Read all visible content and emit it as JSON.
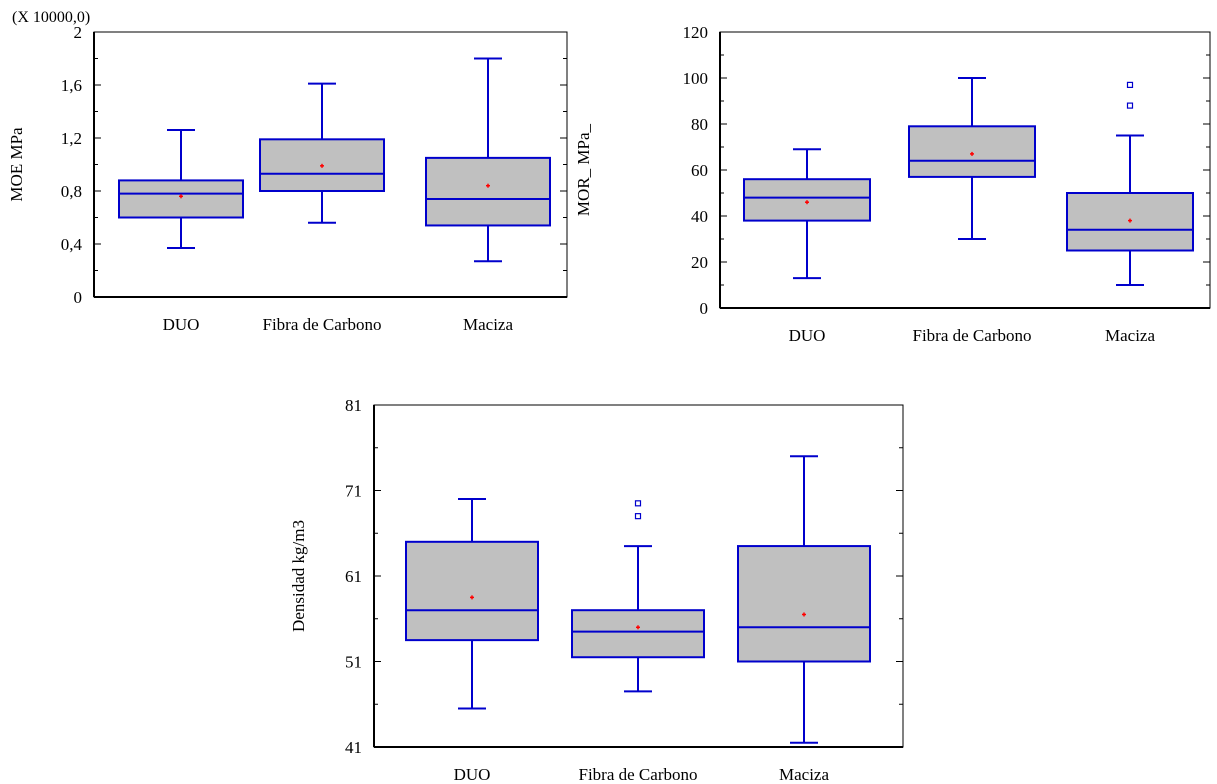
{
  "chart_data": [
    {
      "type": "box",
      "scale_note": "(X 10000,0)",
      "ylabel": "MOE MPa",
      "categories": [
        "DUO",
        "Fibra de Carbono",
        "Maciza"
      ],
      "yticks": [
        "0",
        "0,4",
        "0,8",
        "1,2",
        "1,6",
        "2"
      ],
      "ylim": [
        0,
        2.0
      ],
      "boxes": [
        {
          "whisker_low": 0.37,
          "q1": 0.6,
          "median": 0.78,
          "q3": 0.88,
          "whisker_high": 1.26,
          "mean": 0.76,
          "outliers": []
        },
        {
          "whisker_low": 0.56,
          "q1": 0.8,
          "median": 0.93,
          "q3": 1.19,
          "whisker_high": 1.61,
          "mean": 0.99,
          "outliers": []
        },
        {
          "whisker_low": 0.27,
          "q1": 0.54,
          "median": 0.74,
          "q3": 1.05,
          "whisker_high": 1.8,
          "mean": 0.84,
          "outliers": []
        }
      ]
    },
    {
      "type": "box",
      "scale_note": "",
      "ylabel": "MOR_ MPa_",
      "categories": [
        "DUO",
        "Fibra de Carbono",
        "Maciza"
      ],
      "yticks": [
        "0",
        "20",
        "40",
        "60",
        "80",
        "100",
        "120"
      ],
      "ylim": [
        0,
        120
      ],
      "boxes": [
        {
          "whisker_low": 13,
          "q1": 38,
          "median": 48,
          "q3": 56,
          "whisker_high": 69,
          "mean": 46,
          "outliers": []
        },
        {
          "whisker_low": 30,
          "q1": 57,
          "median": 64,
          "q3": 79,
          "whisker_high": 100,
          "mean": 67,
          "outliers": []
        },
        {
          "whisker_low": 10,
          "q1": 25,
          "median": 34,
          "q3": 50,
          "whisker_high": 75,
          "mean": 38,
          "outliers": [
            88,
            97
          ]
        }
      ]
    },
    {
      "type": "box",
      "scale_note": "",
      "ylabel": "Densidad kg/m3",
      "categories": [
        "DUO",
        "Fibra de Carbono",
        "Maciza"
      ],
      "yticks": [
        "41",
        "51",
        "61",
        "71",
        "81"
      ],
      "ylim": [
        41,
        81
      ],
      "boxes": [
        {
          "whisker_low": 45.5,
          "q1": 53.5,
          "median": 57,
          "q3": 65,
          "whisker_high": 70,
          "mean": 58.5,
          "outliers": []
        },
        {
          "whisker_low": 47.5,
          "q1": 51.5,
          "median": 54.5,
          "q3": 57,
          "whisker_high": 64.5,
          "mean": 55,
          "outliers": [
            68,
            69.5
          ]
        },
        {
          "whisker_low": 41.5,
          "q1": 51,
          "median": 55,
          "q3": 64.5,
          "whisker_high": 75,
          "mean": 56.5,
          "outliers": []
        }
      ]
    }
  ],
  "colors": {
    "box_fill": "#c0c0c0",
    "box_line": "#0000cc",
    "mean_marker": "#ff0000",
    "axis": "#000000"
  }
}
